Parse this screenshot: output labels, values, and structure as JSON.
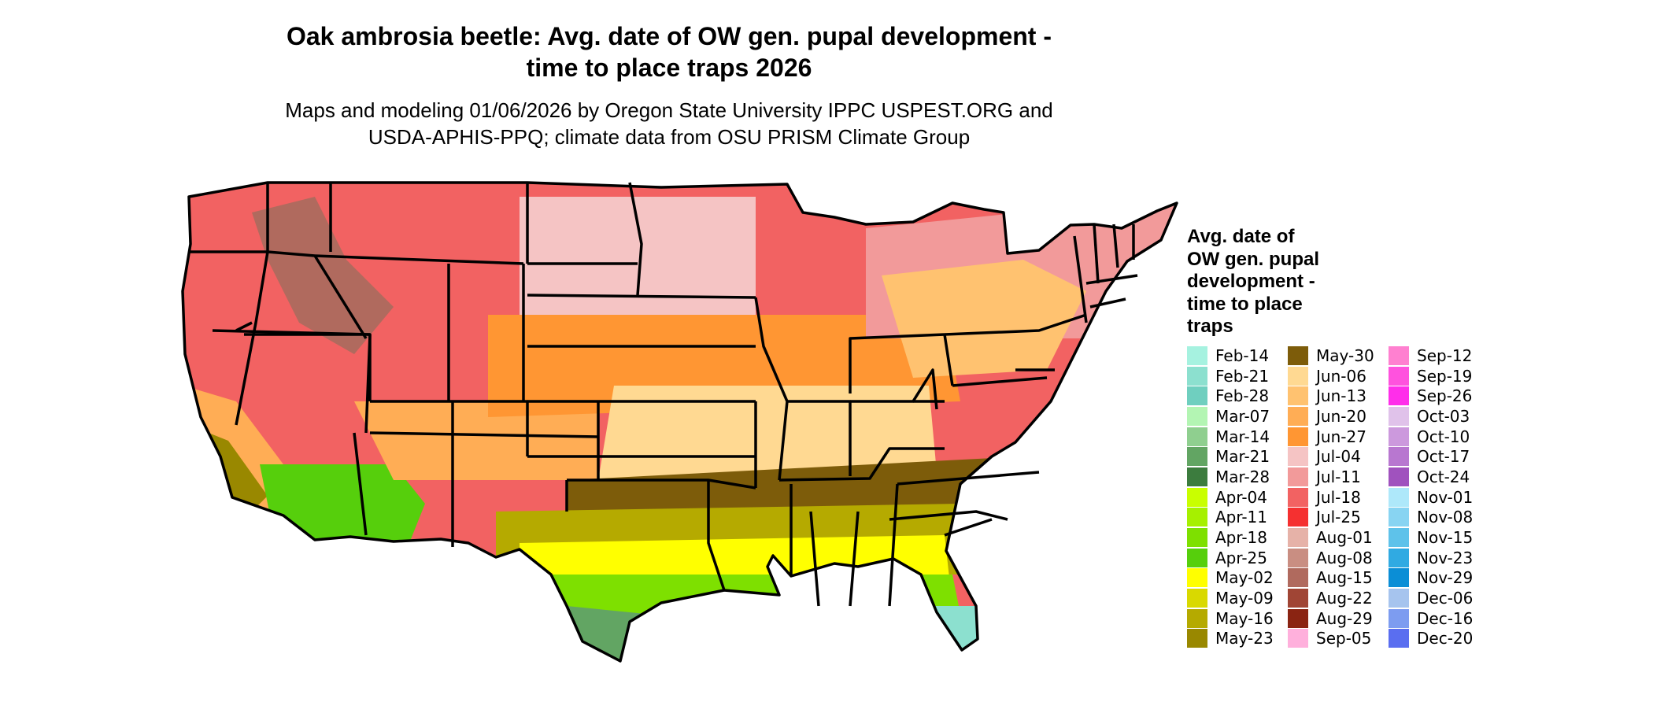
{
  "title_lines": [
    "Oak ambrosia beetle: Avg. date of OW gen. pupal development -",
    "time to place traps 2026"
  ],
  "subtitle_lines": [
    "Maps and modeling 01/06/2026 by Oregon State University IPPC USPEST.ORG and",
    "USDA-APHIS-PPQ; climate data from OSU PRISM Climate Group"
  ],
  "legend": {
    "title_lines": [
      "Avg. date of",
      "OW gen. pupal",
      "development -",
      "time to place",
      "traps"
    ],
    "columns": [
      [
        {
          "label": "Feb-14",
          "color": "#a6f2e0"
        },
        {
          "label": "Feb-21",
          "color": "#8ce0cf"
        },
        {
          "label": "Feb-28",
          "color": "#6fcfbf"
        },
        {
          "label": "Mar-07",
          "color": "#b3f5b3"
        },
        {
          "label": "Mar-14",
          "color": "#8fcf8f"
        },
        {
          "label": "Mar-21",
          "color": "#62a563"
        },
        {
          "label": "Mar-28",
          "color": "#3c7c3e"
        },
        {
          "label": "Apr-04",
          "color": "#c9ff00"
        },
        {
          "label": "Apr-11",
          "color": "#a6f000"
        },
        {
          "label": "Apr-18",
          "color": "#7ee000"
        },
        {
          "label": "Apr-25",
          "color": "#56cf0c"
        },
        {
          "label": "May-02",
          "color": "#ffff00"
        },
        {
          "label": "May-09",
          "color": "#d9d900"
        },
        {
          "label": "May-16",
          "color": "#b5aa00"
        },
        {
          "label": "May-23",
          "color": "#998800"
        }
      ],
      [
        {
          "label": "May-30",
          "color": "#7d5c0a"
        },
        {
          "label": "Jun-06",
          "color": "#ffd992"
        },
        {
          "label": "Jun-13",
          "color": "#ffc270"
        },
        {
          "label": "Jun-20",
          "color": "#ffad55"
        },
        {
          "label": "Jun-27",
          "color": "#ff9633"
        },
        {
          "label": "Jul-04",
          "color": "#f5c4c4"
        },
        {
          "label": "Jul-11",
          "color": "#f29a9a"
        },
        {
          "label": "Jul-18",
          "color": "#f26262"
        },
        {
          "label": "Jul-25",
          "color": "#f53030"
        },
        {
          "label": "Aug-01",
          "color": "#e6b2a8"
        },
        {
          "label": "Aug-08",
          "color": "#c98e82"
        },
        {
          "label": "Aug-15",
          "color": "#b06a5e"
        },
        {
          "label": "Aug-22",
          "color": "#a04535"
        },
        {
          "label": "Aug-29",
          "color": "#8a2412"
        },
        {
          "label": "Sep-05",
          "color": "#ffb0dc"
        }
      ],
      [
        {
          "label": "Sep-12",
          "color": "#ff80d0"
        },
        {
          "label": "Sep-19",
          "color": "#ff52de"
        },
        {
          "label": "Sep-26",
          "color": "#ff2eea"
        },
        {
          "label": "Oct-03",
          "color": "#e0c2ea"
        },
        {
          "label": "Oct-10",
          "color": "#cc99dd"
        },
        {
          "label": "Oct-17",
          "color": "#b877d0"
        },
        {
          "label": "Oct-24",
          "color": "#a052be"
        },
        {
          "label": "Nov-01",
          "color": "#aee8fa"
        },
        {
          "label": "Nov-08",
          "color": "#88d4f2"
        },
        {
          "label": "Nov-15",
          "color": "#5ec2ea"
        },
        {
          "label": "Nov-23",
          "color": "#30aae2"
        },
        {
          "label": "Nov-29",
          "color": "#0b8ed6"
        },
        {
          "label": "Dec-06",
          "color": "#a6c4ee"
        },
        {
          "label": "Dec-16",
          "color": "#7d9cf0"
        },
        {
          "label": "Dec-20",
          "color": "#5a6ef0"
        }
      ]
    ]
  }
}
